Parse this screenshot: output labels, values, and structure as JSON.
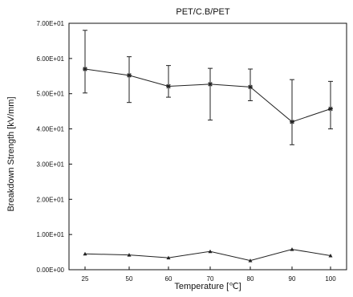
{
  "chart_data": {
    "type": "line",
    "title": "PET/C.B/PET",
    "xlabel": "Temperature [℃]",
    "ylabel": "Breakdown Strength [kV/mm]",
    "categories": [
      "25",
      "50",
      "60",
      "70",
      "80",
      "90",
      "100"
    ],
    "y_tick_labels": [
      "0.00E+00",
      "1.00E+01",
      "2.00E+01",
      "3.00E+01",
      "4.00E+01",
      "5.00E+01",
      "6.00E+01",
      "7.00E+01"
    ],
    "ylim": [
      0,
      70
    ],
    "grid": false,
    "series": [
      {
        "values": [
          57.0,
          55.2,
          52.1,
          52.7,
          51.9,
          42.0,
          45.7
        ],
        "error_low": [
          50.2,
          47.5,
          49.0,
          42.5,
          48.0,
          35.5,
          40.0
        ],
        "error_high": [
          68.0,
          60.5,
          58.0,
          57.2,
          57.0,
          54.0,
          53.5
        ],
        "marker": "asterisk",
        "color": "#222222"
      },
      {
        "values": [
          4.5,
          4.2,
          3.4,
          5.2,
          2.6,
          5.8,
          4.0
        ],
        "marker": "triangle",
        "color": "#222222"
      }
    ]
  }
}
